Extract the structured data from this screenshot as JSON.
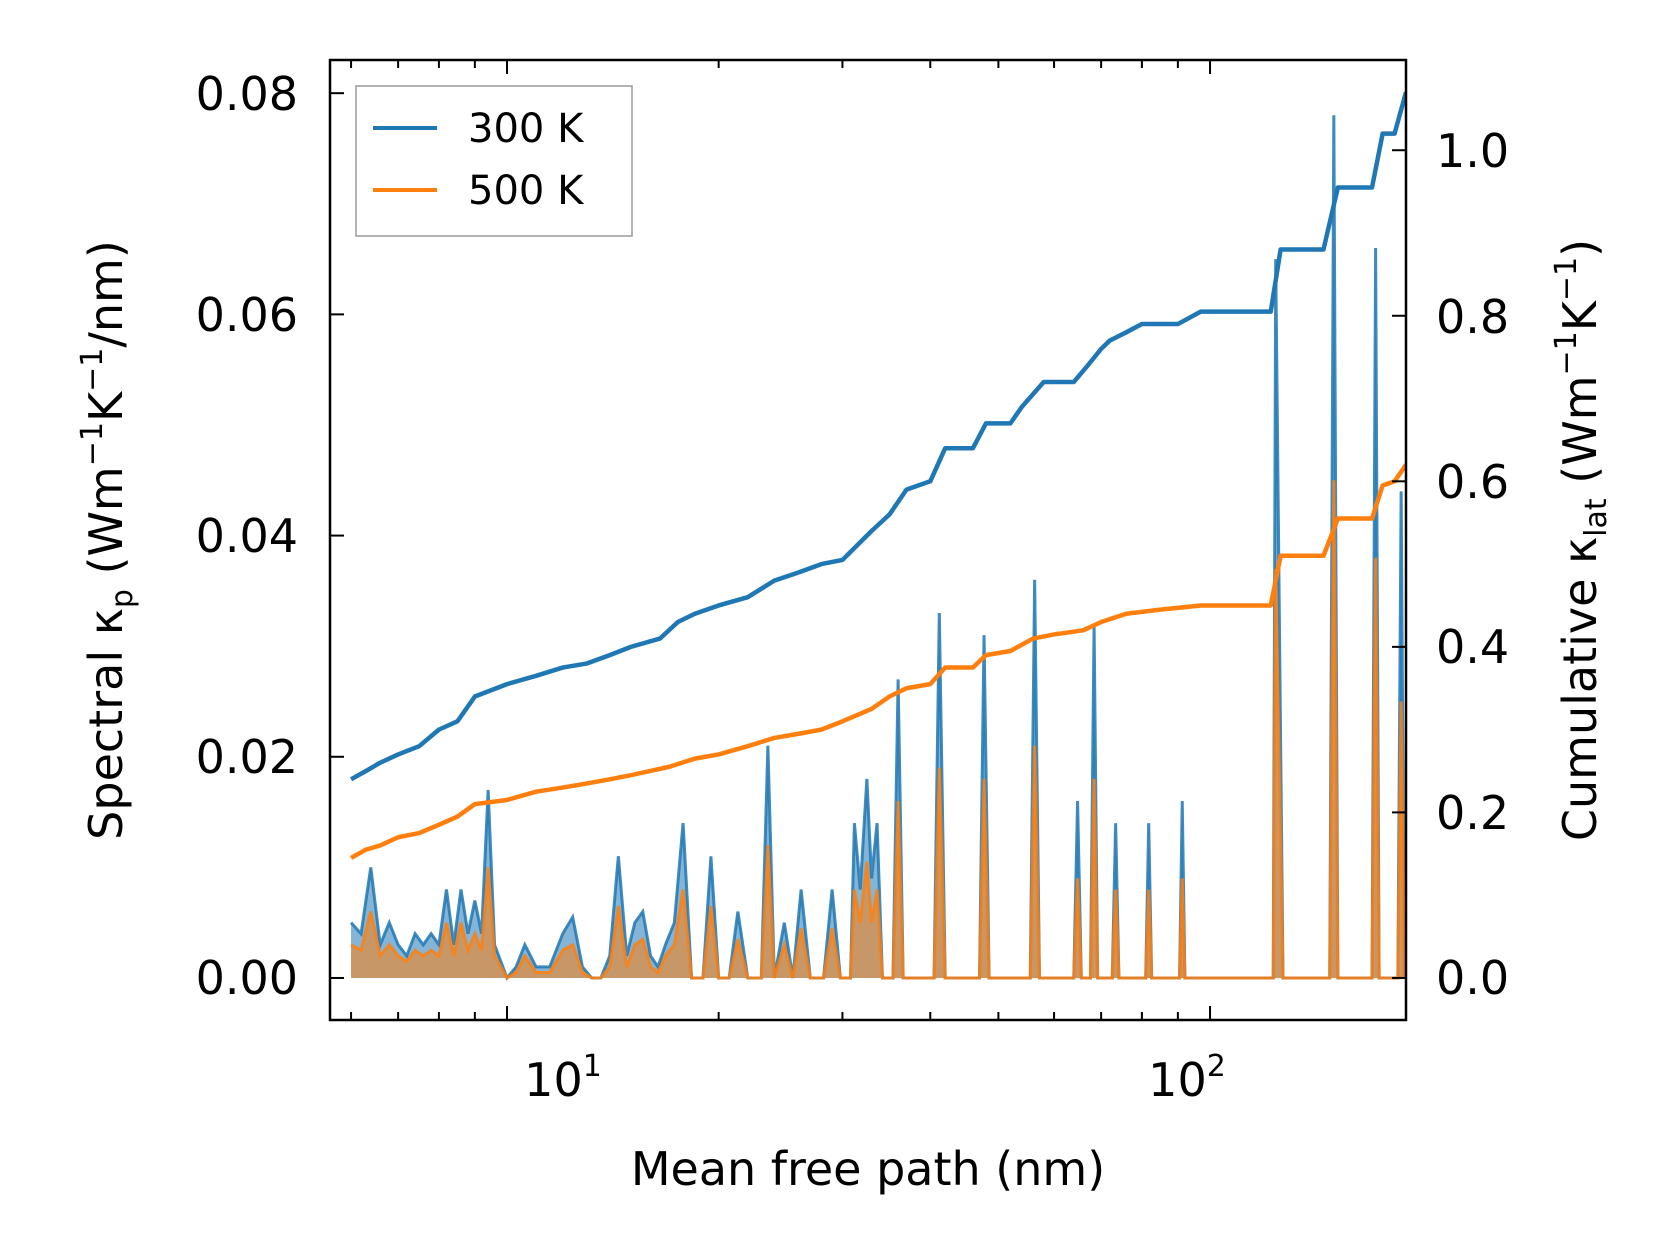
{
  "chart_data": {
    "type": "line+area",
    "title": "",
    "xlabel": "Mean free path (nm)",
    "ylabel_left": {
      "prefix": "Spectral κ",
      "sub": "p",
      "units_open": " (Wm",
      "sup1": "−1",
      "mid": "K",
      "sup2": "−1",
      "units_close": "/nm)"
    },
    "ylabel_right": {
      "prefix": "Cumulative κ",
      "sub": "lat",
      "units_open": " (Wm",
      "sup1": "−1",
      "mid": "K",
      "sup2": "−1",
      "units_close": ")"
    },
    "xscale": "log",
    "xlim": [
      5.6,
      190
    ],
    "ylim_left": [
      -0.0038,
      0.083
    ],
    "ylim_right": [
      -0.0508,
      1.109
    ],
    "xticks_major": [
      {
        "base": "10",
        "exp": "1",
        "value": 10
      },
      {
        "base": "10",
        "exp": "2",
        "value": 100
      }
    ],
    "yticks_left": [
      "0.00",
      "0.02",
      "0.04",
      "0.06",
      "0.08"
    ],
    "yticks_right": [
      "0.0",
      "0.2",
      "0.4",
      "0.6",
      "0.8",
      "1.0"
    ],
    "legend": {
      "location": "upper-left",
      "entries": [
        "300 K",
        "500 K"
      ]
    },
    "colors": {
      "300 K": "#1f77b4",
      "500 K": "#ff7f0e",
      "fill_300": "#1f77b4",
      "fill_500": "#ff7f0e"
    },
    "cumulative": [
      {
        "name": "300 K",
        "axis": "right",
        "points": [
          [
            6.0,
            0.24
          ],
          [
            6.3,
            0.25
          ],
          [
            6.6,
            0.26
          ],
          [
            7.0,
            0.27
          ],
          [
            7.5,
            0.28
          ],
          [
            8.0,
            0.3
          ],
          [
            8.5,
            0.31
          ],
          [
            9.0,
            0.34
          ],
          [
            10.0,
            0.355
          ],
          [
            11.0,
            0.365
          ],
          [
            12.0,
            0.375
          ],
          [
            13.0,
            0.38
          ],
          [
            14.0,
            0.39
          ],
          [
            15.0,
            0.4
          ],
          [
            16.5,
            0.41
          ],
          [
            17.5,
            0.43
          ],
          [
            18.5,
            0.44
          ],
          [
            20.0,
            0.45
          ],
          [
            22.0,
            0.46
          ],
          [
            24.0,
            0.48
          ],
          [
            26.0,
            0.49
          ],
          [
            28.0,
            0.5
          ],
          [
            30.0,
            0.505
          ],
          [
            33.0,
            0.54
          ],
          [
            35.0,
            0.56
          ],
          [
            37.0,
            0.59
          ],
          [
            40.0,
            0.6
          ],
          [
            42.0,
            0.64
          ],
          [
            46.0,
            0.64
          ],
          [
            48.0,
            0.67
          ],
          [
            52.0,
            0.67
          ],
          [
            54.0,
            0.69
          ],
          [
            58.0,
            0.72
          ],
          [
            64.0,
            0.72
          ],
          [
            67.0,
            0.74
          ],
          [
            70.0,
            0.76
          ],
          [
            72.0,
            0.77
          ],
          [
            76.0,
            0.78
          ],
          [
            80.0,
            0.79
          ],
          [
            90.0,
            0.79
          ],
          [
            97.0,
            0.805
          ],
          [
            122.0,
            0.805
          ],
          [
            126.0,
            0.88
          ],
          [
            145.0,
            0.88
          ],
          [
            152.0,
            0.955
          ],
          [
            170.0,
            0.955
          ],
          [
            176.0,
            1.02
          ],
          [
            183.0,
            1.02
          ],
          [
            190.0,
            1.07
          ]
        ]
      },
      {
        "name": "500 K",
        "axis": "right",
        "points": [
          [
            6.0,
            0.145
          ],
          [
            6.3,
            0.155
          ],
          [
            6.6,
            0.16
          ],
          [
            7.0,
            0.17
          ],
          [
            7.5,
            0.175
          ],
          [
            8.0,
            0.185
          ],
          [
            8.5,
            0.195
          ],
          [
            9.0,
            0.21
          ],
          [
            10.0,
            0.215
          ],
          [
            11.0,
            0.225
          ],
          [
            12.0,
            0.23
          ],
          [
            13.0,
            0.235
          ],
          [
            14.0,
            0.24
          ],
          [
            15.0,
            0.245
          ],
          [
            17.0,
            0.255
          ],
          [
            18.5,
            0.265
          ],
          [
            20.0,
            0.27
          ],
          [
            22.0,
            0.28
          ],
          [
            24.0,
            0.29
          ],
          [
            26.0,
            0.295
          ],
          [
            28.0,
            0.3
          ],
          [
            30.0,
            0.31
          ],
          [
            33.0,
            0.325
          ],
          [
            35.0,
            0.34
          ],
          [
            37.0,
            0.35
          ],
          [
            40.0,
            0.355
          ],
          [
            42.0,
            0.375
          ],
          [
            46.0,
            0.375
          ],
          [
            48.0,
            0.39
          ],
          [
            52.0,
            0.395
          ],
          [
            56.0,
            0.41
          ],
          [
            60.0,
            0.415
          ],
          [
            66.0,
            0.42
          ],
          [
            70.0,
            0.43
          ],
          [
            76.0,
            0.44
          ],
          [
            85.0,
            0.445
          ],
          [
            97.0,
            0.45
          ],
          [
            122.0,
            0.45
          ],
          [
            126.0,
            0.51
          ],
          [
            145.0,
            0.51
          ],
          [
            152.0,
            0.555
          ],
          [
            170.0,
            0.555
          ],
          [
            176.0,
            0.595
          ],
          [
            183.0,
            0.6
          ],
          [
            190.0,
            0.62
          ]
        ]
      }
    ],
    "spectral": [
      {
        "name": "300 K",
        "axis": "left",
        "points": [
          [
            6.0,
            0.005
          ],
          [
            6.2,
            0.004
          ],
          [
            6.4,
            0.01
          ],
          [
            6.6,
            0.003
          ],
          [
            6.8,
            0.005
          ],
          [
            7.0,
            0.003
          ],
          [
            7.2,
            0.002
          ],
          [
            7.4,
            0.004
          ],
          [
            7.6,
            0.003
          ],
          [
            7.8,
            0.004
          ],
          [
            8.0,
            0.003
          ],
          [
            8.2,
            0.008
          ],
          [
            8.4,
            0.003
          ],
          [
            8.6,
            0.008
          ],
          [
            8.8,
            0.004
          ],
          [
            9.0,
            0.007
          ],
          [
            9.2,
            0.004
          ],
          [
            9.4,
            0.017
          ],
          [
            9.6,
            0.003
          ],
          [
            10.0,
            0.0
          ],
          [
            10.3,
            0.001
          ],
          [
            10.6,
            0.003
          ],
          [
            11.0,
            0.001
          ],
          [
            11.5,
            0.001
          ],
          [
            12.0,
            0.004
          ],
          [
            12.4,
            0.0055
          ],
          [
            12.8,
            0.001
          ],
          [
            13.2,
            0.0
          ],
          [
            13.6,
            0.0
          ],
          [
            14.0,
            0.002
          ],
          [
            14.4,
            0.011
          ],
          [
            14.8,
            0.002
          ],
          [
            15.2,
            0.005
          ],
          [
            15.6,
            0.006
          ],
          [
            16.0,
            0.002
          ],
          [
            16.4,
            0.001
          ],
          [
            16.8,
            0.003
          ],
          [
            17.3,
            0.005
          ],
          [
            17.8,
            0.014
          ],
          [
            18.3,
            0.0
          ],
          [
            19.0,
            0.0
          ],
          [
            19.5,
            0.011
          ],
          [
            20.0,
            0.0
          ],
          [
            20.7,
            0.0
          ],
          [
            21.3,
            0.006
          ],
          [
            22.0,
            0.0
          ],
          [
            23.0,
            0.0
          ],
          [
            23.5,
            0.021
          ],
          [
            24.0,
            0.0
          ],
          [
            24.8,
            0.005
          ],
          [
            25.5,
            0.0
          ],
          [
            26.2,
            0.008
          ],
          [
            27.0,
            0.0
          ],
          [
            28.2,
            0.0
          ],
          [
            29.0,
            0.008
          ],
          [
            29.8,
            0.0
          ],
          [
            30.8,
            0.0
          ],
          [
            31.2,
            0.014
          ],
          [
            31.8,
            0.008
          ],
          [
            32.5,
            0.018
          ],
          [
            33.0,
            0.009
          ],
          [
            33.6,
            0.014
          ],
          [
            34.2,
            0.0
          ],
          [
            35.4,
            0.0
          ],
          [
            36.0,
            0.027
          ],
          [
            36.6,
            0.0
          ],
          [
            40.5,
            0.0
          ],
          [
            41.2,
            0.033
          ],
          [
            42.0,
            0.0
          ],
          [
            47.0,
            0.0
          ],
          [
            47.7,
            0.031
          ],
          [
            48.5,
            0.0
          ],
          [
            55.5,
            0.0
          ],
          [
            56.3,
            0.036
          ],
          [
            57.2,
            0.0
          ],
          [
            64.0,
            0.0
          ],
          [
            64.8,
            0.016
          ],
          [
            65.6,
            0.0
          ],
          [
            67.6,
            0.0
          ],
          [
            68.4,
            0.032
          ],
          [
            69.2,
            0.0
          ],
          [
            72.6,
            0.0
          ],
          [
            73.4,
            0.014
          ],
          [
            74.2,
            0.0
          ],
          [
            81.0,
            0.0
          ],
          [
            81.8,
            0.014
          ],
          [
            82.6,
            0.0
          ],
          [
            90.5,
            0.0
          ],
          [
            91.3,
            0.016
          ],
          [
            92.1,
            0.0
          ],
          [
            123.0,
            0.0
          ],
          [
            124.0,
            0.065
          ],
          [
            127.0,
            0.0
          ],
          [
            148.0,
            0.0
          ],
          [
            150.0,
            0.078
          ],
          [
            152.0,
            0.0
          ],
          [
            170.0,
            0.0
          ],
          [
            172.0,
            0.066
          ],
          [
            174.0,
            0.0
          ],
          [
            185.0,
            0.0
          ],
          [
            187.0,
            0.044
          ],
          [
            189.0,
            0.0
          ]
        ]
      },
      {
        "name": "500 K",
        "axis": "left",
        "points": [
          [
            6.0,
            0.003
          ],
          [
            6.2,
            0.0025
          ],
          [
            6.4,
            0.006
          ],
          [
            6.6,
            0.002
          ],
          [
            6.8,
            0.003
          ],
          [
            7.0,
            0.002
          ],
          [
            7.2,
            0.0015
          ],
          [
            7.4,
            0.0025
          ],
          [
            7.6,
            0.002
          ],
          [
            7.8,
            0.0025
          ],
          [
            8.0,
            0.002
          ],
          [
            8.2,
            0.005
          ],
          [
            8.4,
            0.002
          ],
          [
            8.6,
            0.005
          ],
          [
            8.8,
            0.0025
          ],
          [
            9.0,
            0.004
          ],
          [
            9.2,
            0.0025
          ],
          [
            9.4,
            0.01
          ],
          [
            9.6,
            0.002
          ],
          [
            10.0,
            0.0
          ],
          [
            10.3,
            0.0005
          ],
          [
            10.6,
            0.002
          ],
          [
            11.0,
            0.0005
          ],
          [
            11.5,
            0.0005
          ],
          [
            12.0,
            0.0025
          ],
          [
            12.4,
            0.003
          ],
          [
            12.8,
            0.0005
          ],
          [
            13.2,
            0.0
          ],
          [
            13.6,
            0.0
          ],
          [
            14.0,
            0.001
          ],
          [
            14.4,
            0.0065
          ],
          [
            14.8,
            0.001
          ],
          [
            15.2,
            0.003
          ],
          [
            15.6,
            0.0035
          ],
          [
            16.0,
            0.001
          ],
          [
            16.4,
            0.0005
          ],
          [
            16.8,
            0.002
          ],
          [
            17.3,
            0.003
          ],
          [
            17.8,
            0.008
          ],
          [
            18.3,
            0.0
          ],
          [
            19.0,
            0.0
          ],
          [
            19.5,
            0.0065
          ],
          [
            20.0,
            0.0
          ],
          [
            20.7,
            0.0
          ],
          [
            21.3,
            0.0035
          ],
          [
            22.0,
            0.0
          ],
          [
            23.0,
            0.0
          ],
          [
            23.5,
            0.012
          ],
          [
            24.0,
            0.0
          ],
          [
            24.8,
            0.003
          ],
          [
            25.5,
            0.0
          ],
          [
            26.2,
            0.0045
          ],
          [
            27.0,
            0.0
          ],
          [
            28.2,
            0.0
          ],
          [
            29.0,
            0.0045
          ],
          [
            29.8,
            0.0
          ],
          [
            30.8,
            0.0
          ],
          [
            31.2,
            0.008
          ],
          [
            31.8,
            0.005
          ],
          [
            32.5,
            0.0105
          ],
          [
            33.0,
            0.005
          ],
          [
            33.6,
            0.008
          ],
          [
            34.2,
            0.0
          ],
          [
            35.4,
            0.0
          ],
          [
            36.0,
            0.016
          ],
          [
            36.6,
            0.0
          ],
          [
            40.5,
            0.0
          ],
          [
            41.2,
            0.019
          ],
          [
            42.0,
            0.0
          ],
          [
            47.0,
            0.0
          ],
          [
            47.7,
            0.018
          ],
          [
            48.5,
            0.0
          ],
          [
            55.5,
            0.0
          ],
          [
            56.3,
            0.021
          ],
          [
            57.2,
            0.0
          ],
          [
            64.0,
            0.0
          ],
          [
            64.8,
            0.009
          ],
          [
            65.6,
            0.0
          ],
          [
            67.6,
            0.0
          ],
          [
            68.4,
            0.018
          ],
          [
            69.2,
            0.0
          ],
          [
            72.6,
            0.0
          ],
          [
            73.4,
            0.008
          ],
          [
            74.2,
            0.0
          ],
          [
            81.0,
            0.0
          ],
          [
            81.8,
            0.008
          ],
          [
            82.6,
            0.0
          ],
          [
            90.5,
            0.0
          ],
          [
            91.3,
            0.009
          ],
          [
            92.1,
            0.0
          ],
          [
            123.0,
            0.0
          ],
          [
            124.0,
            0.037
          ],
          [
            127.0,
            0.0
          ],
          [
            148.0,
            0.0
          ],
          [
            150.0,
            0.045
          ],
          [
            152.0,
            0.0
          ],
          [
            170.0,
            0.0
          ],
          [
            172.0,
            0.038
          ],
          [
            174.0,
            0.0
          ],
          [
            185.0,
            0.0
          ],
          [
            187.0,
            0.025
          ],
          [
            189.0,
            0.0
          ]
        ]
      }
    ]
  }
}
